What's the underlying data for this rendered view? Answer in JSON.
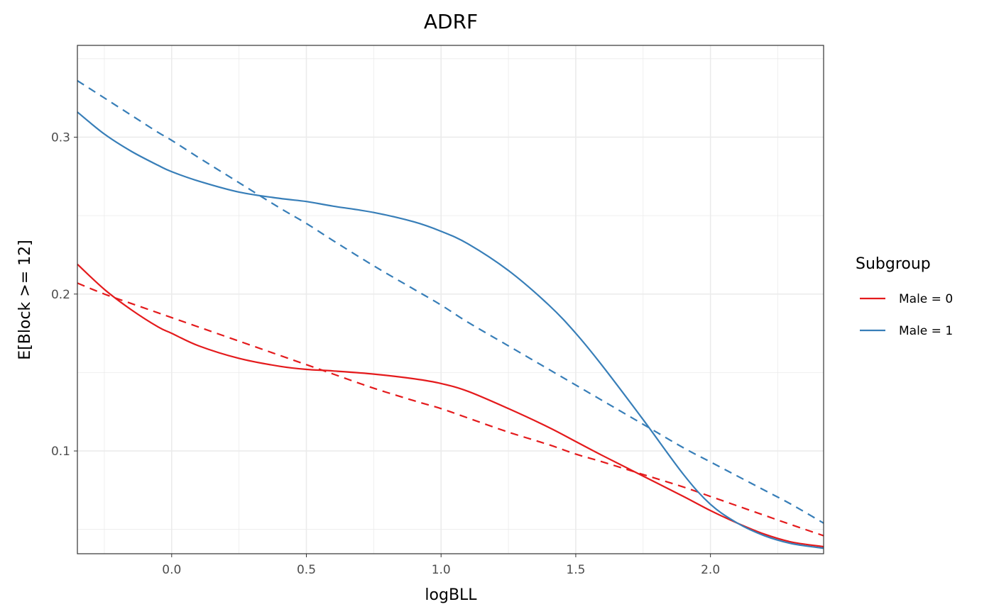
{
  "chart_data": {
    "type": "line",
    "title": "ADRF",
    "xlabel": "logBLL",
    "ylabel": "E[Block >= 12]",
    "xlim": [
      -0.35,
      2.42
    ],
    "ylim": [
      0.0345,
      0.3585
    ],
    "x_ticks": [
      0.0,
      0.5,
      1.0,
      1.5,
      2.0
    ],
    "x_tick_labels": [
      "0.0",
      "0.5",
      "1.0",
      "1.5",
      "2.0"
    ],
    "y_ticks": [
      0.1,
      0.2,
      0.3
    ],
    "y_tick_labels": [
      "0.1",
      "0.2",
      "0.3"
    ],
    "grid": true,
    "legend": {
      "title": "Subgroup",
      "position": "right"
    },
    "x": [
      -0.35,
      -0.25,
      -0.15,
      -0.05,
      0.0,
      0.1,
      0.25,
      0.4,
      0.5,
      0.6,
      0.75,
      0.9,
      1.0,
      1.1,
      1.25,
      1.4,
      1.5,
      1.6,
      1.75,
      1.9,
      2.0,
      2.1,
      2.2,
      2.3,
      2.42
    ],
    "series": [
      {
        "name": "Male = 0",
        "color": "#e41a1c",
        "style": "solid",
        "values": [
          0.219,
          0.203,
          0.19,
          0.179,
          0.175,
          0.167,
          0.159,
          0.154,
          0.152,
          0.151,
          0.149,
          0.146,
          0.143,
          0.138,
          0.127,
          0.115,
          0.106,
          0.097,
          0.084,
          0.071,
          0.062,
          0.054,
          0.047,
          0.042,
          0.039
        ]
      },
      {
        "name": "Male = 0",
        "color": "#e41a1c",
        "style": "dashed",
        "values": [
          0.207,
          0.2,
          0.194,
          0.188,
          0.185,
          0.179,
          0.17,
          0.161,
          0.155,
          0.149,
          0.14,
          0.132,
          0.127,
          0.121,
          0.112,
          0.104,
          0.098,
          0.093,
          0.085,
          0.077,
          0.071,
          0.065,
          0.059,
          0.053,
          0.046
        ]
      },
      {
        "name": "Male = 1",
        "color": "#377eb8",
        "style": "solid",
        "values": [
          0.316,
          0.302,
          0.291,
          0.282,
          0.278,
          0.272,
          0.265,
          0.261,
          0.259,
          0.256,
          0.252,
          0.246,
          0.24,
          0.232,
          0.215,
          0.193,
          0.175,
          0.154,
          0.12,
          0.085,
          0.066,
          0.054,
          0.046,
          0.041,
          0.038
        ]
      },
      {
        "name": "Male = 1",
        "color": "#377eb8",
        "style": "dashed",
        "values": [
          0.336,
          0.325,
          0.314,
          0.303,
          0.298,
          0.287,
          0.271,
          0.255,
          0.245,
          0.234,
          0.218,
          0.203,
          0.193,
          0.182,
          0.167,
          0.152,
          0.142,
          0.132,
          0.117,
          0.102,
          0.093,
          0.084,
          0.075,
          0.066,
          0.054
        ]
      }
    ],
    "legend_entries": [
      {
        "label": "Male = 0",
        "color": "#e41a1c"
      },
      {
        "label": "Male = 1",
        "color": "#377eb8"
      }
    ]
  }
}
